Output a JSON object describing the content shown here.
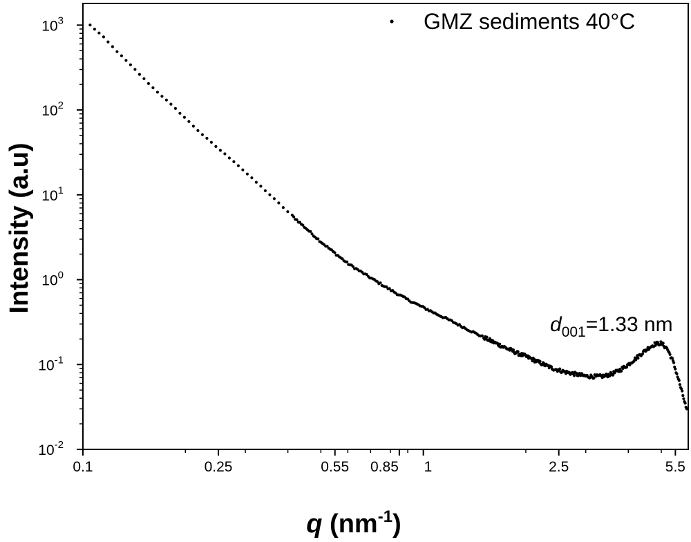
{
  "chart_data": {
    "type": "scatter",
    "x_scale": "log",
    "y_scale": "log",
    "xlabel": {
      "symbol": "q",
      "text": " (nm",
      "exp": "-1",
      "close": ")"
    },
    "ylabel": "Intensity (a.u)",
    "xlim": [
      0.1,
      6.0
    ],
    "ylim": [
      0.01,
      1800
    ],
    "x_ticks": [
      {
        "value": 0.1,
        "label": "0.1"
      },
      {
        "value": 0.25,
        "label": "0.25"
      },
      {
        "value": 0.55,
        "label": "0.55"
      },
      {
        "value": 0.85,
        "label": "0.85"
      },
      {
        "value": 1.0,
        "label": "1"
      },
      {
        "value": 2.5,
        "label": "2.5"
      },
      {
        "value": 5.5,
        "label": "5.5"
      }
    ],
    "y_ticks": [
      {
        "value": 0.01,
        "base": "10",
        "exp": "-2"
      },
      {
        "value": 0.1,
        "base": "10",
        "exp": "-1"
      },
      {
        "value": 1,
        "base": "10",
        "exp": "0"
      },
      {
        "value": 10,
        "base": "10",
        "exp": "1"
      },
      {
        "value": 100,
        "base": "10",
        "exp": "2"
      },
      {
        "value": 1000,
        "base": "10",
        "exp": "3"
      }
    ],
    "legend": {
      "label": "GMZ sediments  40°C",
      "position": "top-right"
    },
    "annotation": {
      "symbol": "d",
      "subscript": "001",
      "text": "=1.33 nm",
      "x": 4.8,
      "y": 0.2
    },
    "grid": false,
    "series": [
      {
        "name": "GMZ sediments  40°C",
        "color": "#000000",
        "x": [
          0.105,
          0.11,
          0.115,
          0.12,
          0.13,
          0.14,
          0.15,
          0.16,
          0.18,
          0.2,
          0.22,
          0.25,
          0.28,
          0.3,
          0.33,
          0.37,
          0.4,
          0.45,
          0.5,
          0.55,
          0.6,
          0.7,
          0.8,
          0.9,
          1.0,
          1.1,
          1.2,
          1.3,
          1.5,
          1.7,
          1.9,
          2.0,
          2.2,
          2.4,
          2.6,
          2.8,
          3.0,
          3.2,
          3.4,
          3.6,
          3.8,
          4.0,
          4.2,
          4.4,
          4.6,
          4.8,
          5.0,
          5.2,
          5.4,
          5.6,
          5.8,
          5.95
        ],
        "y": [
          1000,
          850,
          720,
          600,
          430,
          320,
          240,
          185,
          120,
          80,
          55,
          35,
          24,
          18.5,
          13,
          8.5,
          6.3,
          4.1,
          2.8,
          2.05,
          1.55,
          1.05,
          0.76,
          0.58,
          0.47,
          0.39,
          0.33,
          0.28,
          0.21,
          0.165,
          0.135,
          0.125,
          0.105,
          0.09,
          0.082,
          0.077,
          0.073,
          0.072,
          0.073,
          0.078,
          0.087,
          0.1,
          0.117,
          0.137,
          0.158,
          0.175,
          0.178,
          0.155,
          0.112,
          0.07,
          0.042,
          0.028
        ]
      }
    ]
  }
}
